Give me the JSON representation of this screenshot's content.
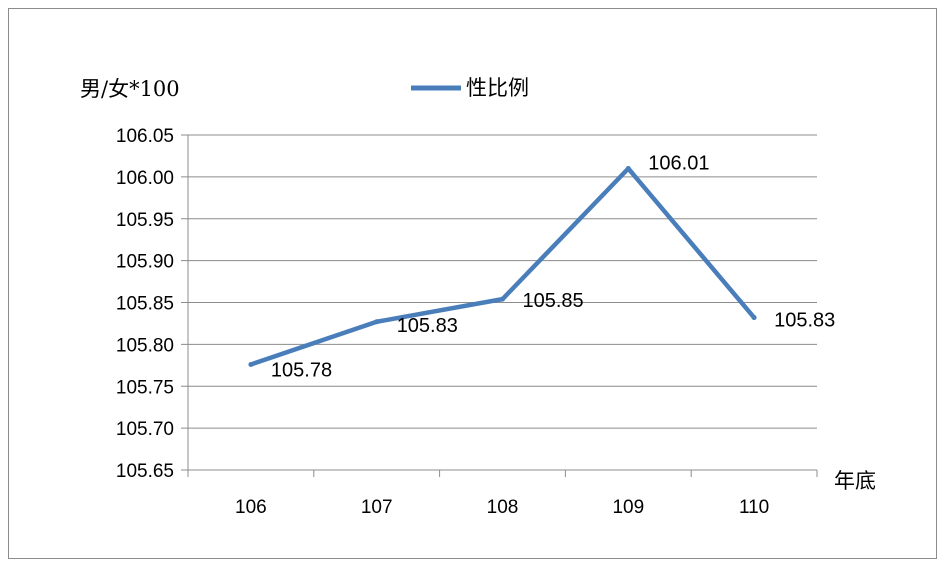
{
  "chart_data": {
    "type": "line",
    "ylabel": "男/女*100",
    "xlabel": "年底",
    "categories": [
      "106",
      "107",
      "108",
      "109",
      "110"
    ],
    "series": [
      {
        "name": "性比例",
        "values": [
          105.776,
          105.827,
          105.854,
          106.01,
          105.832
        ],
        "labels": [
          "105.78",
          "105.83",
          "105.85",
          "106.01",
          "105.83"
        ],
        "color": "#4a7ebb"
      }
    ],
    "ylim": [
      105.65,
      106.05
    ],
    "ytick_step": 0.05,
    "y_tick_labels": [
      "105.65",
      "105.70",
      "105.75",
      "105.80",
      "105.85",
      "105.90",
      "105.95",
      "106.00",
      "106.05"
    ],
    "grid": true,
    "legend": "top"
  }
}
